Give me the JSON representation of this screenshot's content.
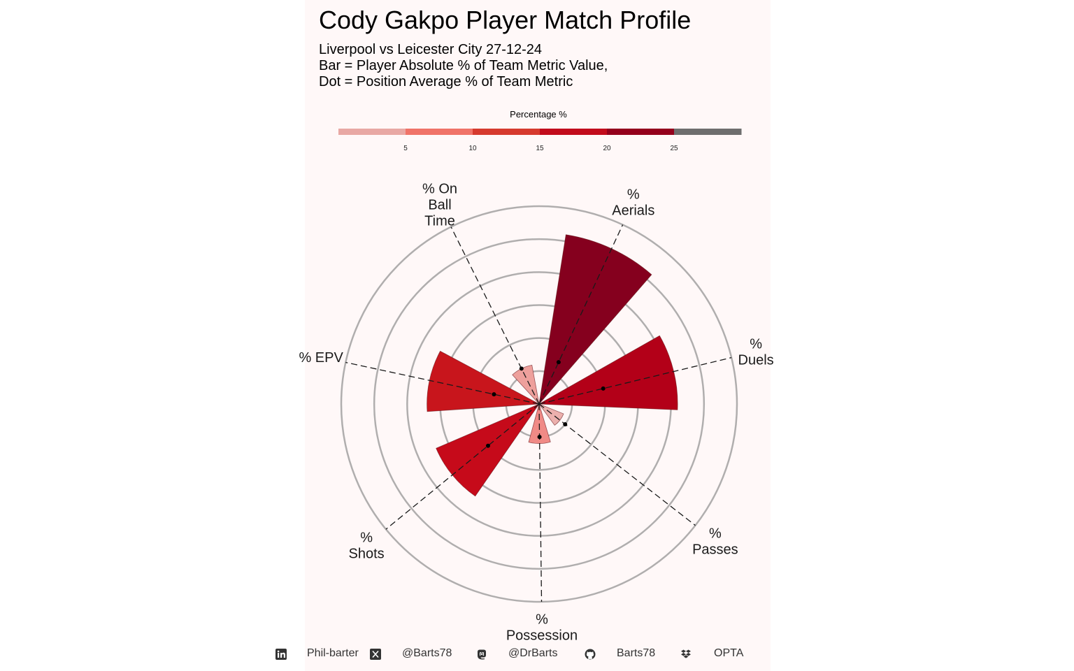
{
  "title": "Cody Gakpo Player Match Profile",
  "subtitle_lines": [
    "Liverpool vs Leicester City 27-12-24",
    "Bar = Player Absolute % of Team Metric Value,",
    "Dot = Position Average % of Team Metric"
  ],
  "legend": {
    "title": "Percentage %",
    "ticks": [
      "5",
      "10",
      "15",
      "20",
      "25"
    ],
    "colors": [
      "#e8a8a4",
      "#f07368",
      "#d63a2e",
      "#c20c1c",
      "#94001c",
      "#6e6e6e"
    ]
  },
  "chart_data": {
    "type": "polar-bar",
    "title": "Cody Gakpo Player Match Profile",
    "categories": [
      "% Aerials",
      "% Duels",
      "% Passes",
      "% Possession",
      "% Shots",
      "% EPV",
      "% On Ball Time"
    ],
    "label_lines": [
      [
        "%",
        "Aerials"
      ],
      [
        "%",
        "Duels"
      ],
      [
        "%",
        "Passes"
      ],
      [
        "%",
        "Possession"
      ],
      [
        "%",
        "Shots"
      ],
      [
        "% EPV"
      ],
      [
        "% On",
        "Ball",
        "Time"
      ]
    ],
    "series": [
      {
        "values": [
          26,
          21,
          4,
          6,
          17,
          17,
          6
        ]
      },
      {
        "values": [
          7,
          10,
          5,
          5,
          10,
          7,
          6
        ]
      }
    ],
    "bar_colors": [
      "#85001e",
      "#b30018",
      "#ecb0ad",
      "#f08a86",
      "#c60a1a",
      "#c8151c",
      "#eea09c"
    ],
    "rlim": [
      0,
      30
    ],
    "grid": true
  },
  "footer": {
    "items": [
      {
        "icon": "linkedin-icon",
        "label": "Phil-barter"
      },
      {
        "icon": "x-twitter-icon",
        "label": "@Barts78"
      },
      {
        "icon": "mastodon-icon",
        "label": "@DrBarts"
      },
      {
        "icon": "github-icon",
        "label": "Barts78"
      },
      {
        "icon": "dropbox-icon",
        "label": "OPTA"
      }
    ]
  }
}
